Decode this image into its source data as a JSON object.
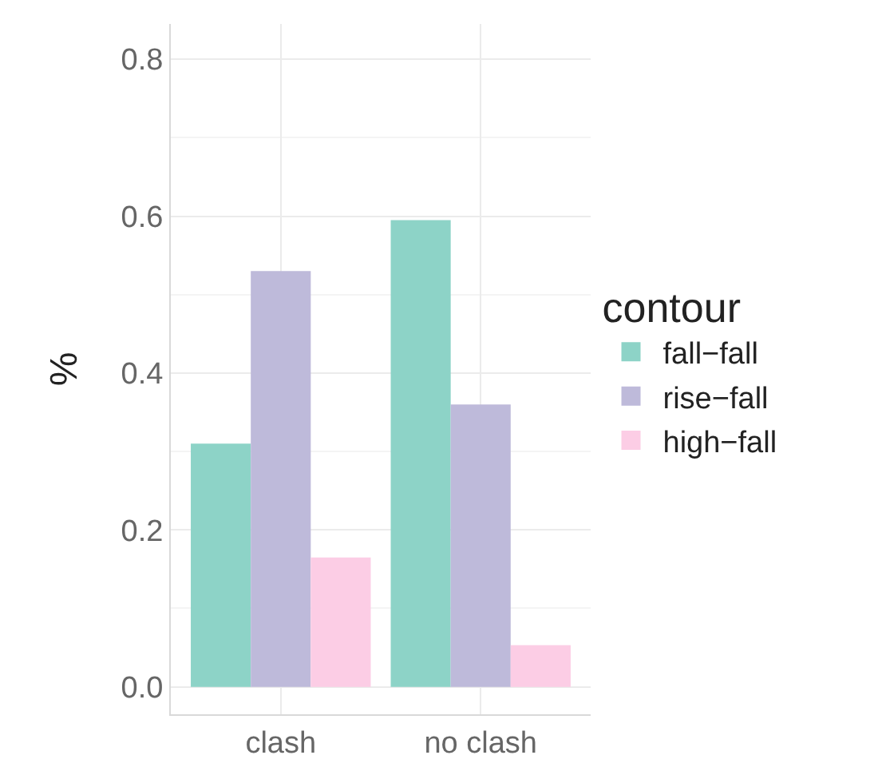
{
  "chart_data": {
    "type": "bar",
    "ylabel": "%",
    "legend_title": "contour",
    "categories": [
      "clash",
      "no clash"
    ],
    "series": [
      {
        "name": "fall−fall",
        "color": "#8dd3c7",
        "values": [
          0.31,
          0.595
        ]
      },
      {
        "name": "rise−fall",
        "color": "#bebada",
        "values": [
          0.53,
          0.36
        ]
      },
      {
        "name": "high−fall",
        "color": "#fccde5",
        "values": [
          0.165,
          0.053
        ]
      }
    ],
    "ylim": [
      -0.035,
      0.845
    ],
    "yticks": [
      {
        "value": 0,
        "label": "0.0"
      },
      0.2,
      0.4,
      0.6,
      0.8
    ],
    "grid": true,
    "legend": "right"
  }
}
